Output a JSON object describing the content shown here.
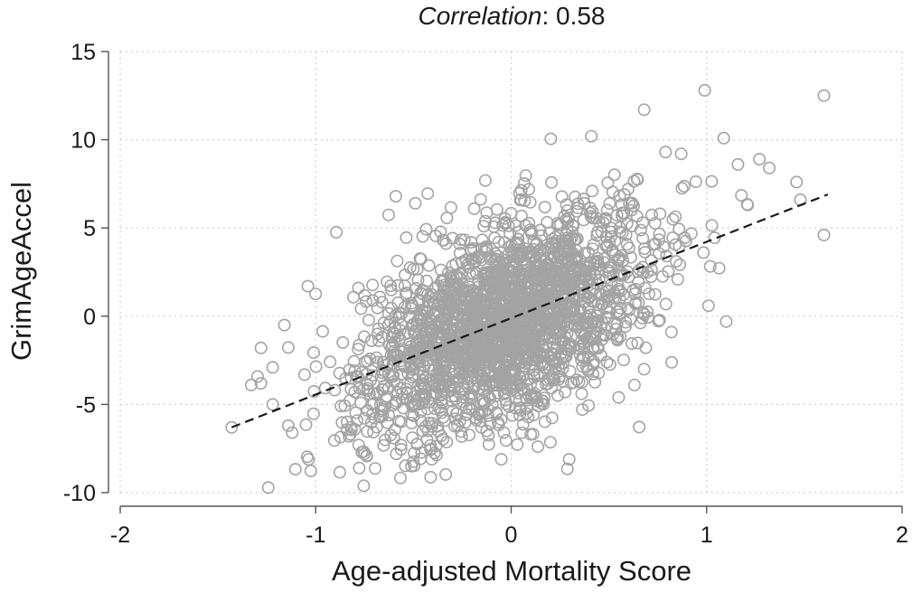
{
  "chart_data": {
    "type": "scatter",
    "title_italic": "Correlation",
    "title_rest": ": 0.58",
    "correlation": 0.58,
    "xlabel": "Age-adjusted Mortality Score",
    "ylabel": "GrimAgeAccel",
    "xlim": [
      -2,
      2
    ],
    "ylim": [
      -10,
      15
    ],
    "x_ticks": [
      -2,
      -1,
      0,
      1,
      2
    ],
    "y_ticks": [
      -10,
      -5,
      0,
      5,
      10,
      15
    ],
    "x_tick_labels": [
      "-2",
      "-1",
      "0",
      "1",
      "2"
    ],
    "y_tick_labels": [
      "-10",
      "-5",
      "0",
      "5",
      "10",
      "15"
    ],
    "grid": true,
    "point_color": "#a3a3a3",
    "line_color": "#1a1a1a",
    "fit_line": {
      "x": [
        -1.43,
        1.62
      ],
      "y": [
        -6.3,
        6.9
      ],
      "style": "dashed"
    },
    "n_points_approx": 2300,
    "notable_points": [
      {
        "x": 0.99,
        "y": 12.8
      },
      {
        "x": 1.6,
        "y": 12.5
      },
      {
        "x": 0.68,
        "y": 11.7
      },
      {
        "x": 1.6,
        "y": 4.6
      },
      {
        "x": -0.59,
        "y": 6.8
      },
      {
        "x": -0.49,
        "y": 6.4
      },
      {
        "x": -1.04,
        "y": 1.7
      },
      {
        "x": -1.16,
        "y": -0.5
      },
      {
        "x": -1.28,
        "y": -1.8
      },
      {
        "x": -1.28,
        "y": -3.8
      },
      {
        "x": -1.33,
        "y": -3.9
      },
      {
        "x": -1.22,
        "y": -2.9
      },
      {
        "x": -1.22,
        "y": -5.0
      },
      {
        "x": -1.12,
        "y": -6.6
      },
      {
        "x": -1.43,
        "y": -6.3
      },
      {
        "x": -0.51,
        "y": -8.5
      },
      {
        "x": -0.78,
        "y": -7.3
      },
      {
        "x": -0.75,
        "y": -7.8
      },
      {
        "x": 0.1,
        "y": -6.7
      },
      {
        "x": 1.1,
        "y": -0.3
      },
      {
        "x": 0.41,
        "y": 10.2
      },
      {
        "x": 0.79,
        "y": 9.3
      },
      {
        "x": 0.87,
        "y": 9.2
      },
      {
        "x": 1.27,
        "y": 8.9
      },
      {
        "x": 1.32,
        "y": 8.4
      },
      {
        "x": 1.16,
        "y": 8.6
      },
      {
        "x": 1.46,
        "y": 7.6
      },
      {
        "x": 1.48,
        "y": 6.6
      },
      {
        "x": 1.21,
        "y": 6.3
      },
      {
        "x": 0.55,
        "y": -4.6
      },
      {
        "x": 0.68,
        "y": -3.0
      },
      {
        "x": 0.82,
        "y": -0.9
      }
    ]
  }
}
